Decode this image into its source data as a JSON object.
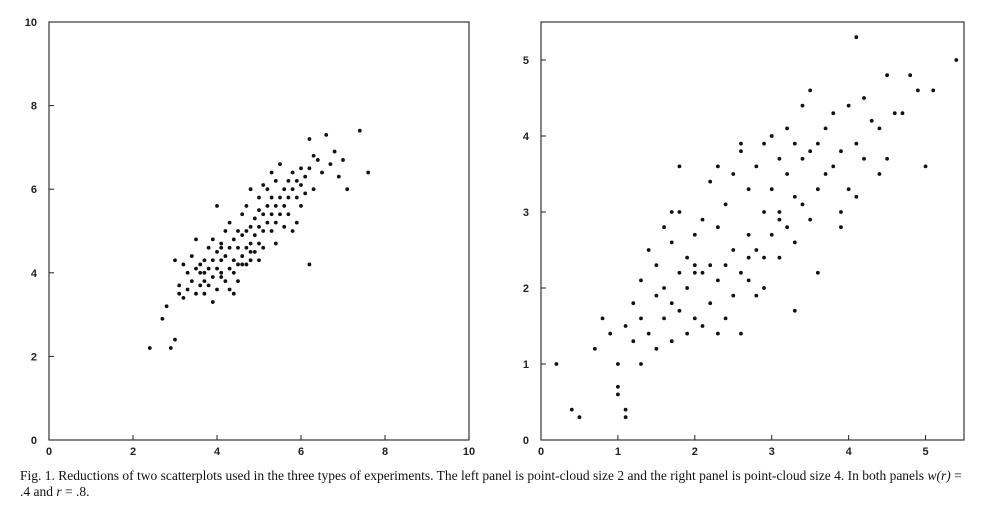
{
  "caption": {
    "fig_label": "Fig. 1.",
    "text_main": "Reductions of two scatterplots used in the three types of experiments. The left panel is point-cloud size 2 and the right panel is point-cloud size 4. In both panels ",
    "wr_symbol": "w(r)",
    "wr_eq": " = .4 and ",
    "r_symbol": "r",
    "r_eq": " = .8."
  },
  "chart_data": [
    {
      "type": "scatter",
      "title": "",
      "xlabel": "",
      "ylabel": "",
      "xlim": [
        0,
        10
      ],
      "ylim": [
        0,
        10
      ],
      "xticks": [
        0,
        2,
        4,
        6,
        8,
        10
      ],
      "yticks": [
        0,
        2,
        4,
        6,
        8,
        10
      ],
      "grid": false,
      "x": [
        2.4,
        2.7,
        2.8,
        2.9,
        3.0,
        3.1,
        3.0,
        3.1,
        3.2,
        3.2,
        3.3,
        3.3,
        3.4,
        3.4,
        3.5,
        3.5,
        3.5,
        3.6,
        3.6,
        3.6,
        3.7,
        3.7,
        3.7,
        3.8,
        3.8,
        3.8,
        3.9,
        3.9,
        3.9,
        4.0,
        4.0,
        4.0,
        4.0,
        4.1,
        4.1,
        4.1,
        4.1,
        4.2,
        4.2,
        4.2,
        4.3,
        4.3,
        4.3,
        4.3,
        4.4,
        4.4,
        4.4,
        4.5,
        4.5,
        4.5,
        4.5,
        4.6,
        4.6,
        4.6,
        4.7,
        4.7,
        4.7,
        4.7,
        4.8,
        4.8,
        4.8,
        4.8,
        4.9,
        4.9,
        4.9,
        5.0,
        5.0,
        5.0,
        5.0,
        5.1,
        5.1,
        5.1,
        5.1,
        5.2,
        5.2,
        5.2,
        5.3,
        5.3,
        5.3,
        5.3,
        5.4,
        5.4,
        5.4,
        5.5,
        5.5,
        5.5,
        5.6,
        5.6,
        5.6,
        5.7,
        5.7,
        5.7,
        5.8,
        5.8,
        5.8,
        5.9,
        5.9,
        6.0,
        6.0,
        6.0,
        6.1,
        6.1,
        6.2,
        6.2,
        6.3,
        6.3,
        6.4,
        6.5,
        6.6,
        6.7,
        6.8,
        6.9,
        7.0,
        7.1,
        7.4,
        7.6,
        4.1,
        3.7,
        4.6,
        5.4,
        6.2,
        5.0,
        4.4,
        3.9,
        4.8,
        5.9
      ],
      "y": [
        2.2,
        2.9,
        3.2,
        2.2,
        2.4,
        3.5,
        4.3,
        3.7,
        4.2,
        3.4,
        4.0,
        3.6,
        4.4,
        3.8,
        4.1,
        3.5,
        4.8,
        4.2,
        3.7,
        4.0,
        4.3,
        3.8,
        3.5,
        4.6,
        4.1,
        3.7,
        4.3,
        4.8,
        3.9,
        4.5,
        4.1,
        3.6,
        5.6,
        4.3,
        3.9,
        4.7,
        4.0,
        4.4,
        3.8,
        5.0,
        4.6,
        4.1,
        3.6,
        5.2,
        4.8,
        4.3,
        4.0,
        5.0,
        4.6,
        4.2,
        3.8,
        4.9,
        4.4,
        5.4,
        5.0,
        4.6,
        4.2,
        5.6,
        5.1,
        4.7,
        4.3,
        6.0,
        5.3,
        4.9,
        4.5,
        5.5,
        5.1,
        4.7,
        5.8,
        5.4,
        5.0,
        6.1,
        4.6,
        5.6,
        5.2,
        6.0,
        5.8,
        5.4,
        5.0,
        6.4,
        5.6,
        5.2,
        6.2,
        5.8,
        5.4,
        6.6,
        6.0,
        5.6,
        5.1,
        6.2,
        5.8,
        5.4,
        6.4,
        6.0,
        5.0,
        6.2,
        5.8,
        6.5,
        6.1,
        5.6,
        6.3,
        5.9,
        7.2,
        6.5,
        6.0,
        6.8,
        6.7,
        6.4,
        7.3,
        6.6,
        6.9,
        6.3,
        6.7,
        6.0,
        7.4,
        6.4,
        4.6,
        4.0,
        4.2,
        4.7,
        4.2,
        4.3,
        3.5,
        3.3,
        4.5,
        5.2
      ]
    },
    {
      "type": "scatter",
      "title": "",
      "xlabel": "",
      "ylabel": "",
      "xlim": [
        0,
        5.5
      ],
      "ylim": [
        0,
        5.5
      ],
      "xticks": [
        0,
        1,
        2,
        3,
        4,
        5
      ],
      "yticks": [
        0,
        1,
        2,
        3,
        4,
        5
      ],
      "grid": false,
      "x": [
        0.2,
        0.4,
        0.5,
        0.7,
        0.8,
        0.9,
        1.0,
        1.0,
        1.1,
        1.1,
        1.2,
        1.2,
        1.3,
        1.3,
        1.4,
        1.4,
        1.5,
        1.5,
        1.5,
        1.6,
        1.6,
        1.7,
        1.7,
        1.7,
        1.8,
        1.8,
        1.8,
        1.9,
        1.9,
        1.9,
        2.0,
        2.0,
        2.0,
        2.1,
        2.1,
        2.1,
        2.2,
        2.2,
        2.2,
        2.3,
        2.3,
        2.3,
        2.4,
        2.4,
        2.4,
        2.5,
        2.5,
        2.5,
        2.6,
        2.6,
        2.6,
        2.7,
        2.7,
        2.7,
        2.8,
        2.8,
        2.8,
        2.9,
        2.9,
        2.9,
        3.0,
        3.0,
        3.0,
        3.1,
        3.1,
        3.1,
        3.2,
        3.2,
        3.2,
        3.3,
        3.3,
        3.3,
        3.4,
        3.4,
        3.4,
        3.5,
        3.5,
        3.6,
        3.6,
        3.6,
        3.7,
        3.7,
        3.8,
        3.8,
        3.9,
        3.9,
        4.0,
        4.0,
        4.1,
        4.1,
        4.2,
        4.2,
        4.3,
        4.4,
        4.5,
        4.6,
        4.7,
        4.8,
        4.9,
        5.0,
        5.1,
        5.4,
        1.0,
        1.1,
        1.3,
        1.8,
        2.6,
        3.3,
        4.1,
        4.5,
        1.7,
        2.3,
        2.9,
        3.5,
        1.6,
        3.9,
        2.0,
        2.7,
        3.1,
        4.4
      ],
      "y": [
        1.0,
        0.4,
        0.3,
        1.2,
        1.6,
        1.4,
        1.0,
        0.7,
        0.4,
        1.5,
        1.3,
        1.8,
        1.6,
        2.1,
        1.4,
        2.5,
        1.2,
        1.9,
        2.3,
        1.6,
        2.0,
        1.3,
        1.8,
        2.6,
        1.7,
        2.2,
        3.0,
        1.4,
        2.0,
        2.4,
        1.6,
        2.3,
        2.7,
        1.5,
        2.2,
        2.9,
        1.8,
        2.3,
        3.4,
        1.4,
        2.1,
        2.8,
        1.6,
        2.3,
        3.1,
        1.9,
        2.5,
        3.5,
        1.4,
        2.2,
        3.8,
        2.1,
        2.7,
        3.3,
        1.9,
        2.5,
        3.6,
        2.4,
        3.0,
        3.9,
        2.7,
        3.3,
        4.0,
        2.4,
        3.0,
        3.7,
        2.8,
        3.5,
        4.1,
        2.6,
        3.2,
        3.9,
        3.1,
        3.7,
        4.4,
        2.9,
        4.6,
        3.3,
        3.9,
        2.2,
        3.5,
        4.1,
        3.6,
        4.3,
        3.0,
        3.8,
        3.3,
        4.4,
        3.9,
        5.3,
        3.7,
        4.5,
        4.2,
        3.5,
        4.8,
        4.3,
        4.3,
        4.8,
        4.6,
        3.6,
        4.6,
        5.0,
        0.6,
        0.3,
        1.0,
        3.6,
        3.9,
        1.7,
        3.2,
        3.7,
        3.0,
        3.6,
        2.0,
        3.8,
        2.8,
        2.8,
        2.2,
        2.4,
        2.9,
        4.1
      ]
    }
  ]
}
